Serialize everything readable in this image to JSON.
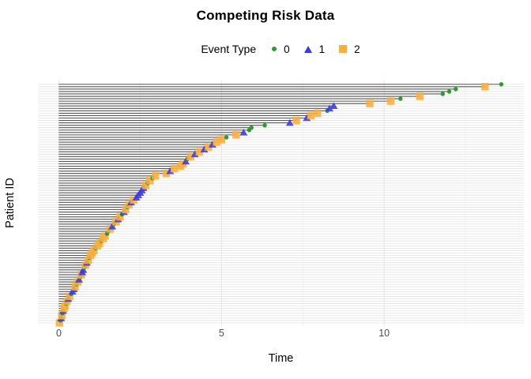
{
  "title": "Competing Risk Data",
  "legend": {
    "title": "Event Type",
    "items": [
      {
        "label": "0",
        "shape": "circle",
        "color": "#2E9B2E"
      },
      {
        "label": "1",
        "shape": "triangle",
        "color": "#3A3ADF"
      },
      {
        "label": "2",
        "shape": "square",
        "color": "#FBAE3A"
      }
    ]
  },
  "chart_data": {
    "type": "scatter",
    "subtype": "event-lollipop",
    "title": "Competing Risk Data",
    "xlabel": "Time",
    "ylabel": "Patient ID",
    "xlim": [
      0,
      14.3
    ],
    "x_ticks": [
      0,
      5,
      10
    ],
    "x_minor_ticks": [
      2.5,
      7.5,
      12.5
    ],
    "grid": true,
    "legend_position": "top",
    "n_patients": 100,
    "event_colors": {
      "0": "#2E9B2E",
      "1": "#3A3ADF",
      "2": "#FBAE3A"
    },
    "event_shapes": {
      "0": "circle",
      "1": "triangle",
      "2": "square"
    },
    "patients_format": "[time, event_type]; sorted ascending by time; plotted bottom row to top row; horizontal segment drawn from time 0 to event time",
    "patients": [
      [
        0.02,
        2
      ],
      [
        0.05,
        0
      ],
      [
        0.07,
        1
      ],
      [
        0.09,
        2
      ],
      [
        0.11,
        0
      ],
      [
        0.13,
        1
      ],
      [
        0.16,
        2
      ],
      [
        0.19,
        2
      ],
      [
        0.22,
        0
      ],
      [
        0.25,
        2
      ],
      [
        0.29,
        1
      ],
      [
        0.33,
        2
      ],
      [
        0.38,
        0
      ],
      [
        0.42,
        1
      ],
      [
        0.46,
        1
      ],
      [
        0.5,
        2
      ],
      [
        0.54,
        0
      ],
      [
        0.58,
        2
      ],
      [
        0.62,
        1
      ],
      [
        0.66,
        0
      ],
      [
        0.69,
        2
      ],
      [
        0.72,
        1
      ],
      [
        0.75,
        1
      ],
      [
        0.79,
        0
      ],
      [
        0.82,
        2
      ],
      [
        0.86,
        1
      ],
      [
        0.9,
        2
      ],
      [
        0.93,
        0
      ],
      [
        0.97,
        2
      ],
      [
        1.02,
        2
      ],
      [
        1.08,
        2
      ],
      [
        1.13,
        0
      ],
      [
        1.19,
        2
      ],
      [
        1.25,
        2
      ],
      [
        1.3,
        0
      ],
      [
        1.36,
        2
      ],
      [
        1.42,
        2
      ],
      [
        1.48,
        0
      ],
      [
        1.53,
        0
      ],
      [
        1.58,
        2
      ],
      [
        1.64,
        1
      ],
      [
        1.7,
        0
      ],
      [
        1.76,
        2
      ],
      [
        1.82,
        1
      ],
      [
        1.88,
        2
      ],
      [
        1.94,
        0
      ],
      [
        2.0,
        1
      ],
      [
        2.05,
        2
      ],
      [
        2.1,
        0
      ],
      [
        2.15,
        2
      ],
      [
        2.22,
        1
      ],
      [
        2.3,
        2
      ],
      [
        2.38,
        1
      ],
      [
        2.44,
        1
      ],
      [
        2.5,
        1
      ],
      [
        2.55,
        1
      ],
      [
        2.6,
        1
      ],
      [
        2.67,
        2
      ],
      [
        2.73,
        0
      ],
      [
        2.8,
        2
      ],
      [
        2.88,
        0
      ],
      [
        2.97,
        2
      ],
      [
        3.3,
        2
      ],
      [
        3.42,
        1
      ],
      [
        3.55,
        2
      ],
      [
        3.74,
        2
      ],
      [
        3.82,
        2
      ],
      [
        3.9,
        1
      ],
      [
        3.96,
        0
      ],
      [
        4.05,
        2
      ],
      [
        4.18,
        1
      ],
      [
        4.32,
        2
      ],
      [
        4.47,
        1
      ],
      [
        4.6,
        2
      ],
      [
        4.72,
        1
      ],
      [
        4.85,
        2
      ],
      [
        5.0,
        2
      ],
      [
        5.15,
        0
      ],
      [
        5.45,
        2
      ],
      [
        5.68,
        1
      ],
      [
        5.85,
        0
      ],
      [
        5.92,
        0
      ],
      [
        6.33,
        0
      ],
      [
        7.1,
        1
      ],
      [
        7.3,
        2
      ],
      [
        7.62,
        1
      ],
      [
        7.75,
        2
      ],
      [
        7.95,
        2
      ],
      [
        8.25,
        0
      ],
      [
        8.32,
        1
      ],
      [
        8.45,
        1
      ],
      [
        9.56,
        2
      ],
      [
        10.2,
        2
      ],
      [
        10.5,
        0
      ],
      [
        11.1,
        2
      ],
      [
        11.8,
        0
      ],
      [
        12.0,
        0
      ],
      [
        12.2,
        0
      ],
      [
        13.1,
        2
      ],
      [
        13.6,
        0
      ]
    ],
    "style": {
      "segment_color": "#565656",
      "row_gridline_color": "#e0e0e0",
      "major_gridline_color": "#e7e7e7",
      "minor_gridline_color": "#f1f1f1",
      "background": "#ffffff"
    }
  }
}
